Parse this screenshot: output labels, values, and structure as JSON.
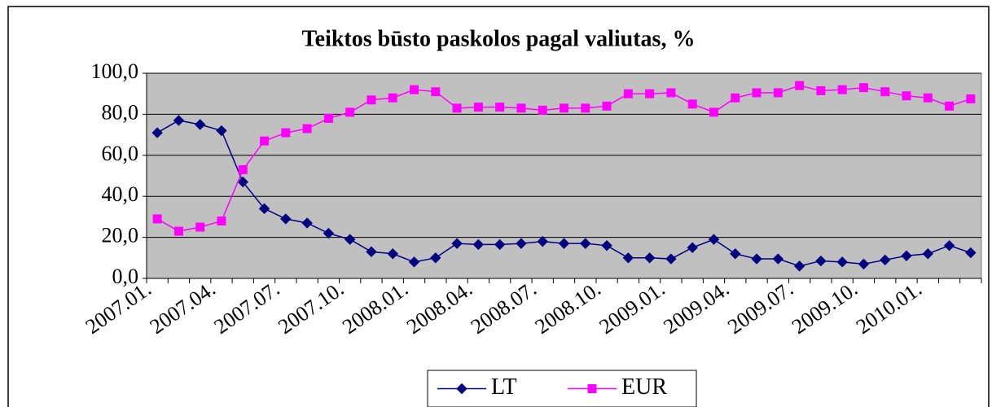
{
  "chart_data": {
    "type": "line",
    "title": "Teiktos būsto paskolos pagal valiutas, %",
    "categories": [
      "2007.01.",
      null,
      null,
      "2007.04.",
      null,
      null,
      "2007.07.",
      null,
      null,
      "2007.10.",
      null,
      null,
      "2008.01.",
      null,
      null,
      "2008.04.",
      null,
      null,
      "2008.07.",
      null,
      null,
      "2008.10.",
      null,
      null,
      "2009.01.",
      null,
      null,
      "2009.04.",
      null,
      null,
      "2009.07.",
      null,
      null,
      "2009.10.",
      null,
      null,
      "2010.01.",
      null,
      null
    ],
    "series": [
      {
        "name": "LT",
        "color": "#000080",
        "marker": "diamond",
        "values": [
          71,
          77,
          75,
          72,
          47,
          34,
          29,
          27,
          22,
          19,
          13,
          12,
          8,
          10,
          17,
          16.5,
          16.5,
          17,
          18,
          17,
          17,
          16,
          10,
          10,
          9.5,
          15,
          19,
          12,
          9.5,
          9.5,
          6,
          8.5,
          8,
          7,
          9,
          11,
          12,
          16,
          12.5
        ]
      },
      {
        "name": "EUR",
        "color": "#ff00ff",
        "marker": "square",
        "values": [
          29,
          23,
          25,
          28,
          53,
          67,
          71,
          73,
          78,
          81,
          87,
          88,
          92,
          91,
          83,
          83.5,
          83.5,
          83,
          82,
          83,
          83,
          84,
          90,
          90,
          90.5,
          85,
          81,
          88,
          90.5,
          90.5,
          94,
          91.5,
          92,
          93,
          91,
          89,
          88,
          84,
          87.5
        ]
      }
    ],
    "ylim": [
      0,
      100
    ],
    "yticks": [
      {
        "value": 0,
        "label": "0,0"
      },
      {
        "value": 20,
        "label": "20,0"
      },
      {
        "value": 40,
        "label": "40,0"
      },
      {
        "value": 60,
        "label": "60,0"
      },
      {
        "value": 80,
        "label": "80,0"
      },
      {
        "value": 100,
        "label": "100,0"
      }
    ],
    "grid": true,
    "legend": "bottom"
  }
}
